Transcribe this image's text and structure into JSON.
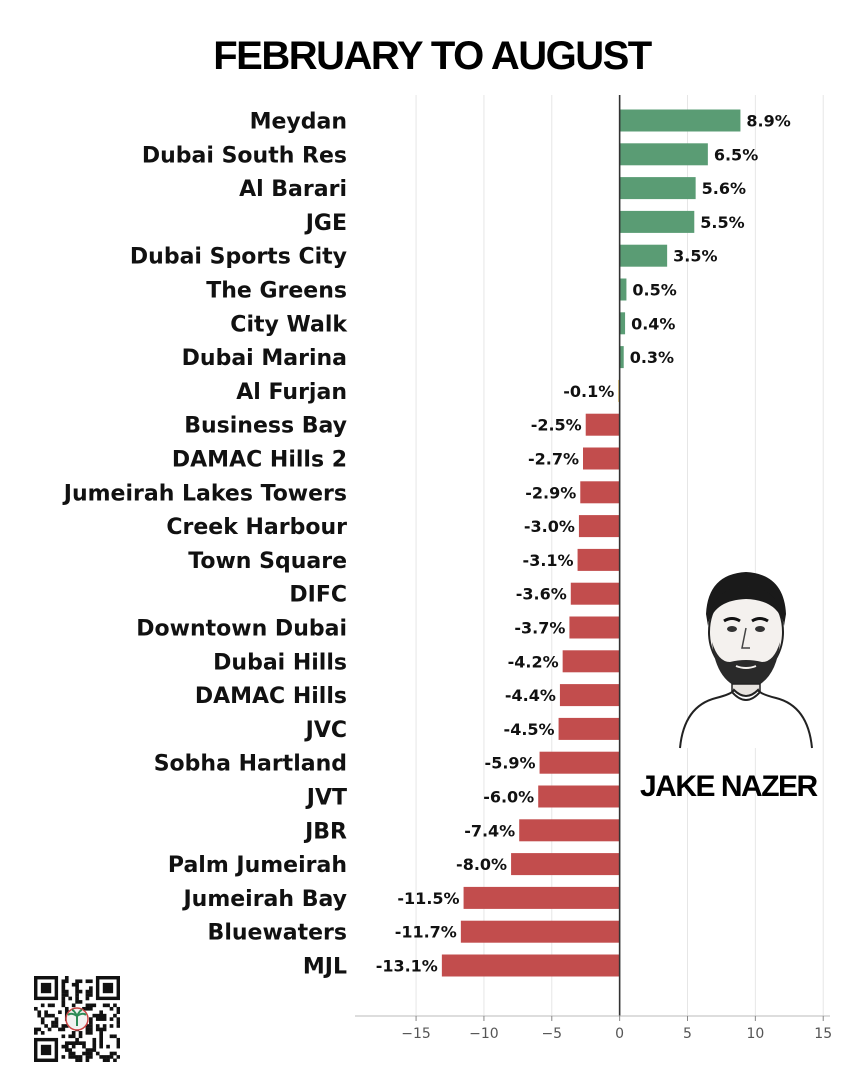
{
  "title": "FEBRUARY TO AUGUST",
  "author": "JAKE NAZER",
  "colors": {
    "positive": "#5a9c74",
    "negative": "#c24d4d",
    "zero": "#e0b44a",
    "axis": "#333333",
    "grid": "#e6e6e6",
    "label": "#111111"
  },
  "chart_data": {
    "type": "bar",
    "orientation": "horizontal",
    "title": "FEBRUARY TO AUGUST",
    "xlabel": "",
    "ylabel": "",
    "xlim": [
      -19.5,
      15.5
    ],
    "xticks": [
      -15,
      -10,
      -5,
      0,
      5,
      10,
      15
    ],
    "xtick_labels": [
      "−15",
      "−10",
      "−5",
      "0",
      "5",
      "10",
      "15"
    ],
    "grid": "vertical",
    "categories": [
      "Meydan",
      "Dubai South Res",
      "Al Barari",
      "JGE",
      "Dubai Sports City",
      "The Greens",
      "City Walk",
      "Dubai Marina",
      "Al Furjan",
      "Business Bay",
      "DAMAC Hills 2",
      "Jumeirah Lakes Towers",
      "Creek Harbour",
      "Town Square",
      "DIFC",
      "Downtown Dubai",
      "Dubai Hills",
      "DAMAC Hills",
      "JVC",
      "Sobha Hartland",
      "JVT",
      "JBR",
      "Palm Jumeirah",
      "Jumeirah Bay",
      "Bluewaters",
      "MJL"
    ],
    "values": [
      8.9,
      6.5,
      5.6,
      5.5,
      3.5,
      0.5,
      0.4,
      0.3,
      -0.1,
      -2.5,
      -2.7,
      -2.9,
      -3.0,
      -3.1,
      -3.6,
      -3.7,
      -4.2,
      -4.4,
      -4.5,
      -5.9,
      -6.0,
      -7.4,
      -8.0,
      -11.5,
      -11.7,
      -13.1
    ],
    "value_labels": [
      "8.9%",
      "6.5%",
      "5.6%",
      "5.5%",
      "3.5%",
      "0.5%",
      "0.4%",
      "0.3%",
      "-0.1%",
      "-2.5%",
      "-2.7%",
      "-2.9%",
      "-3.0%",
      "-3.1%",
      "-3.6%",
      "-3.7%",
      "-4.2%",
      "-4.4%",
      "-4.5%",
      "-5.9%",
      "-6.0%",
      "-7.4%",
      "-8.0%",
      "-11.5%",
      "-11.7%",
      "-13.1%"
    ]
  }
}
